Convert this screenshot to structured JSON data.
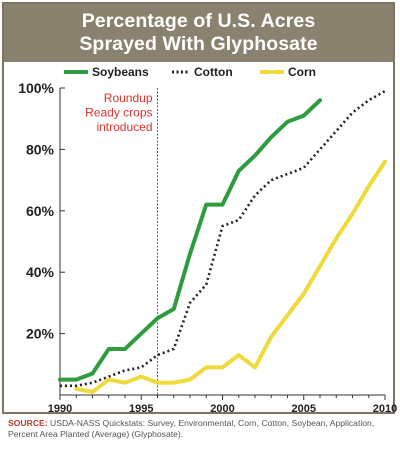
{
  "chart_data": {
    "type": "line",
    "title_lines": [
      "Percentage of U.S. Acres",
      "Sprayed With Glyphosate"
    ],
    "x": [
      1990,
      1991,
      1992,
      1993,
      1994,
      1995,
      1996,
      1997,
      1998,
      1999,
      2000,
      2001,
      2002,
      2003,
      2004,
      2005,
      2006,
      2007,
      2008,
      2009,
      2010
    ],
    "xticks": [
      "1990",
      "1995",
      "2000",
      "2005",
      "2010"
    ],
    "xlim": [
      1990,
      2010
    ],
    "ylim": [
      0,
      100
    ],
    "yticks": [
      20,
      40,
      60,
      80,
      100
    ],
    "ytick_labels": [
      "20%",
      "40%",
      "60%",
      "80%",
      "100%"
    ],
    "series": [
      {
        "name": "Soybeans",
        "color": "#2e9b3e",
        "style": "solid",
        "x": [
          1990,
          1991,
          1992,
          1993,
          1994,
          1995,
          1996,
          1997,
          1998,
          1999,
          2000,
          2001,
          2002,
          2003,
          2004,
          2005,
          2006
        ],
        "values": [
          5,
          5,
          7,
          15,
          15,
          20,
          25,
          28,
          46,
          62,
          62,
          73,
          78,
          84,
          89,
          91,
          96
        ]
      },
      {
        "name": "Cotton",
        "color": "#222222",
        "style": "dotted",
        "x": [
          1990,
          1991,
          1992,
          1993,
          1994,
          1995,
          1996,
          1997,
          1998,
          1999,
          2000,
          2001,
          2002,
          2003,
          2004,
          2005,
          2006,
          2007,
          2008,
          2009,
          2010
        ],
        "values": [
          3,
          3,
          4,
          6,
          8,
          9,
          13,
          15,
          30,
          36,
          55,
          57,
          65,
          70,
          72,
          74,
          80,
          86,
          92,
          96,
          99
        ]
      },
      {
        "name": "Corn",
        "color": "#f0d93a",
        "style": "solid",
        "x": [
          1991,
          1992,
          1993,
          1994,
          1995,
          1996,
          1997,
          1998,
          1999,
          2000,
          2001,
          2002,
          2003,
          2004,
          2005,
          2006,
          2007,
          2008,
          2009,
          2010
        ],
        "values": [
          2,
          1,
          5,
          4,
          6,
          4,
          4,
          5,
          9,
          9,
          13,
          9,
          19,
          26,
          33,
          42,
          51,
          59,
          68,
          76
        ]
      }
    ],
    "annotation": {
      "lines": [
        "Roundup",
        "Ready crops",
        "introduced"
      ],
      "x": 1996,
      "color": "#d9342b"
    }
  },
  "source": {
    "label": "SOURCE:",
    "text": "USDA-NASS Quickstats: Survey, Environmental, Corn, Cotton, Soybean, Application, Percent Area Planted (Average) (Glyphosate)."
  }
}
